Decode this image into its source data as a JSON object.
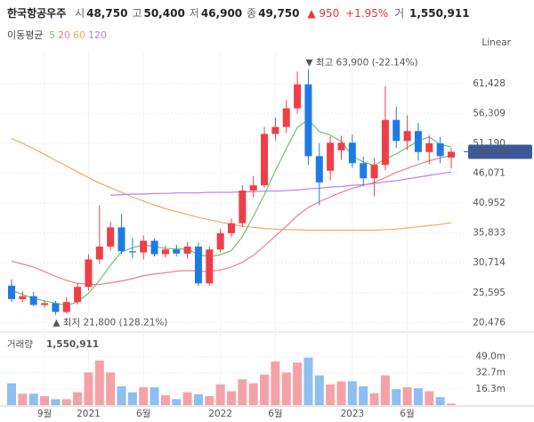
{
  "header": {
    "name": "한국항공우주",
    "items": [
      {
        "label": "시",
        "value": "48,750"
      },
      {
        "label": "고",
        "value": "50,400"
      },
      {
        "label": "저",
        "value": "46,900"
      },
      {
        "label": "종",
        "value": "49,750"
      }
    ],
    "change": "▲ 950",
    "change_pct": "+1.95%",
    "volume_label": "거",
    "volume": "1,550,911"
  },
  "chart_data": {
    "type": "candlestick",
    "ma_label": "이동평균",
    "scale_label": "Linear",
    "categories": [
      null,
      null,
      null,
      "9월",
      null,
      null,
      null,
      "2021",
      null,
      null,
      null,
      null,
      "6월",
      null,
      null,
      null,
      null,
      null,
      null,
      "2022",
      null,
      null,
      null,
      null,
      "6월",
      null,
      null,
      null,
      null,
      null,
      null,
      "2023",
      null,
      null,
      null,
      null,
      "6월",
      null,
      null,
      null,
      null
    ],
    "up_color": "#ef3e48",
    "down_color": "#1f7ae6",
    "ohlc": {
      "open": [
        26800,
        24500,
        25000,
        23500,
        23800,
        22300,
        24000,
        26600,
        31300,
        33500,
        36800,
        32700,
        32500,
        34500,
        32200,
        33000,
        32300,
        33500,
        27200,
        33000,
        35800,
        37500,
        43100,
        44000,
        52800,
        54000,
        57200,
        61300,
        49000,
        46500,
        50000,
        51300,
        47800,
        45200,
        47500,
        55200,
        51600,
        53300,
        49700,
        51200,
        48750
      ],
      "high": [
        27900,
        25800,
        25700,
        24300,
        24200,
        24800,
        27200,
        32200,
        40600,
        37800,
        39100,
        35000,
        35400,
        34900,
        33700,
        33800,
        34300,
        34200,
        33500,
        36500,
        38300,
        44000,
        45600,
        54000,
        55600,
        58600,
        63500,
        63900,
        51200,
        52400,
        52500,
        52700,
        48900,
        48700,
        61000,
        57500,
        56000,
        54700,
        52600,
        52300,
        50400
      ],
      "low": [
        24000,
        24000,
        23300,
        23000,
        21800,
        22000,
        23600,
        26000,
        30500,
        32800,
        32200,
        31500,
        31300,
        31800,
        31600,
        31800,
        31400,
        26800,
        26800,
        32500,
        35100,
        36800,
        41900,
        43600,
        51700,
        53000,
        56300,
        47500,
        40600,
        44800,
        48400,
        47000,
        43900,
        42100,
        46600,
        50400,
        50000,
        48200,
        47600,
        47800,
        46900
      ],
      "close": [
        24500,
        25000,
        23500,
        23800,
        22300,
        24000,
        26600,
        31300,
        33500,
        36800,
        32700,
        32500,
        34500,
        32200,
        33000,
        32300,
        33500,
        27200,
        33000,
        35800,
        37500,
        43100,
        44000,
        52800,
        54000,
        57200,
        61300,
        49000,
        44500,
        51300,
        51300,
        47800,
        45200,
        47500,
        55200,
        51600,
        53300,
        49700,
        51200,
        49000,
        49750
      ]
    },
    "moving_averages": [
      {
        "name": "5",
        "color": "#6cc46c",
        "values": [
          26000,
          25300,
          24600,
          24200,
          23800,
          23400,
          24000,
          25500,
          27700,
          30300,
          32600,
          33300,
          33800,
          33500,
          33200,
          33100,
          33100,
          32100,
          31800,
          32100,
          32800,
          35200,
          38700,
          42400,
          46500,
          50300,
          53900,
          55300,
          53200,
          52600,
          51500,
          49000,
          48000,
          47400,
          48500,
          49400,
          50500,
          51600,
          52300,
          51000,
          50600
        ]
      },
      {
        "name": "20",
        "color": "#f27d8c",
        "values": [
          31000,
          30500,
          30000,
          29200,
          28400,
          27700,
          27200,
          27000,
          27000,
          27300,
          27600,
          28000,
          28500,
          28800,
          29000,
          29300,
          29400,
          29300,
          29200,
          29500,
          30000,
          30800,
          32000,
          33600,
          35300,
          37000,
          38800,
          40200,
          41200,
          42000,
          42800,
          43500,
          44000,
          44500,
          45300,
          46200,
          46900,
          47600,
          48200,
          48700,
          49100
        ]
      },
      {
        "name": "60",
        "color": "#f2aa5e",
        "values": [
          52000,
          51200,
          50300,
          49300,
          48300,
          47300,
          46300,
          45300,
          44400,
          43600,
          42800,
          42000,
          41300,
          40600,
          40000,
          39500,
          39000,
          38500,
          38100,
          37700,
          37300,
          37000,
          36800,
          36600,
          36500,
          36400,
          36400,
          36300,
          36300,
          36300,
          36300,
          36300,
          36300,
          36300,
          36400,
          36500,
          36700,
          36900,
          37100,
          37300,
          37600
        ]
      },
      {
        "name": "120",
        "color": "#b383f2",
        "values": [
          null,
          null,
          null,
          null,
          null,
          null,
          null,
          null,
          null,
          42300,
          42400,
          42500,
          42500,
          42600,
          42600,
          42700,
          42700,
          42700,
          42800,
          42800,
          42800,
          42900,
          42900,
          43000,
          43000,
          43100,
          43200,
          43400,
          43500,
          43700,
          43800,
          44000,
          44100,
          44300,
          44600,
          44800,
          45100,
          45400,
          45700,
          46000,
          46300
        ]
      }
    ],
    "ylim": [
      19000,
      66300
    ],
    "yticks": [
      {
        "value": 20476,
        "label": "20,476"
      },
      {
        "value": 25595,
        "label": "25,595"
      },
      {
        "value": 30714,
        "label": "30,714"
      },
      {
        "value": 35833,
        "label": "35,833"
      },
      {
        "value": 40952,
        "label": "40,952"
      },
      {
        "value": 46071,
        "label": "46,071"
      },
      {
        "value": 51190,
        "label": "51,190"
      },
      {
        "value": 56309,
        "label": "56,309"
      },
      {
        "value": 61428,
        "label": "61,428"
      }
    ],
    "grid": true,
    "last_price_label": "49,750",
    "annotations": [
      {
        "text": "▼ 최고 63,900 (-22.14%)",
        "index": 27,
        "value": 63900
      },
      {
        "text": "▲ 최저 21,800 (128.21%)",
        "index": 4,
        "value": 21800
      }
    ],
    "volume": {
      "label": "거래량",
      "value_label": "1,550,911",
      "up_color": "#f4a2a7",
      "down_color": "#8dbff0",
      "values": [
        22,
        11.5,
        11.5,
        9,
        6,
        6,
        13,
        33,
        45,
        33,
        19,
        13,
        18,
        18,
        10,
        6,
        13,
        11,
        9,
        21,
        14,
        26,
        22,
        31,
        44,
        33,
        43,
        48,
        30,
        21,
        24,
        24,
        19,
        12,
        30,
        16,
        18,
        17,
        14,
        8,
        1.55
      ],
      "ylim": [
        0,
        72
      ],
      "yticks": [
        {
          "value": 16.3,
          "label": "16.3m"
        },
        {
          "value": 32.7,
          "label": "32.7m"
        },
        {
          "value": 49.0,
          "label": "49.0m"
        }
      ]
    }
  }
}
